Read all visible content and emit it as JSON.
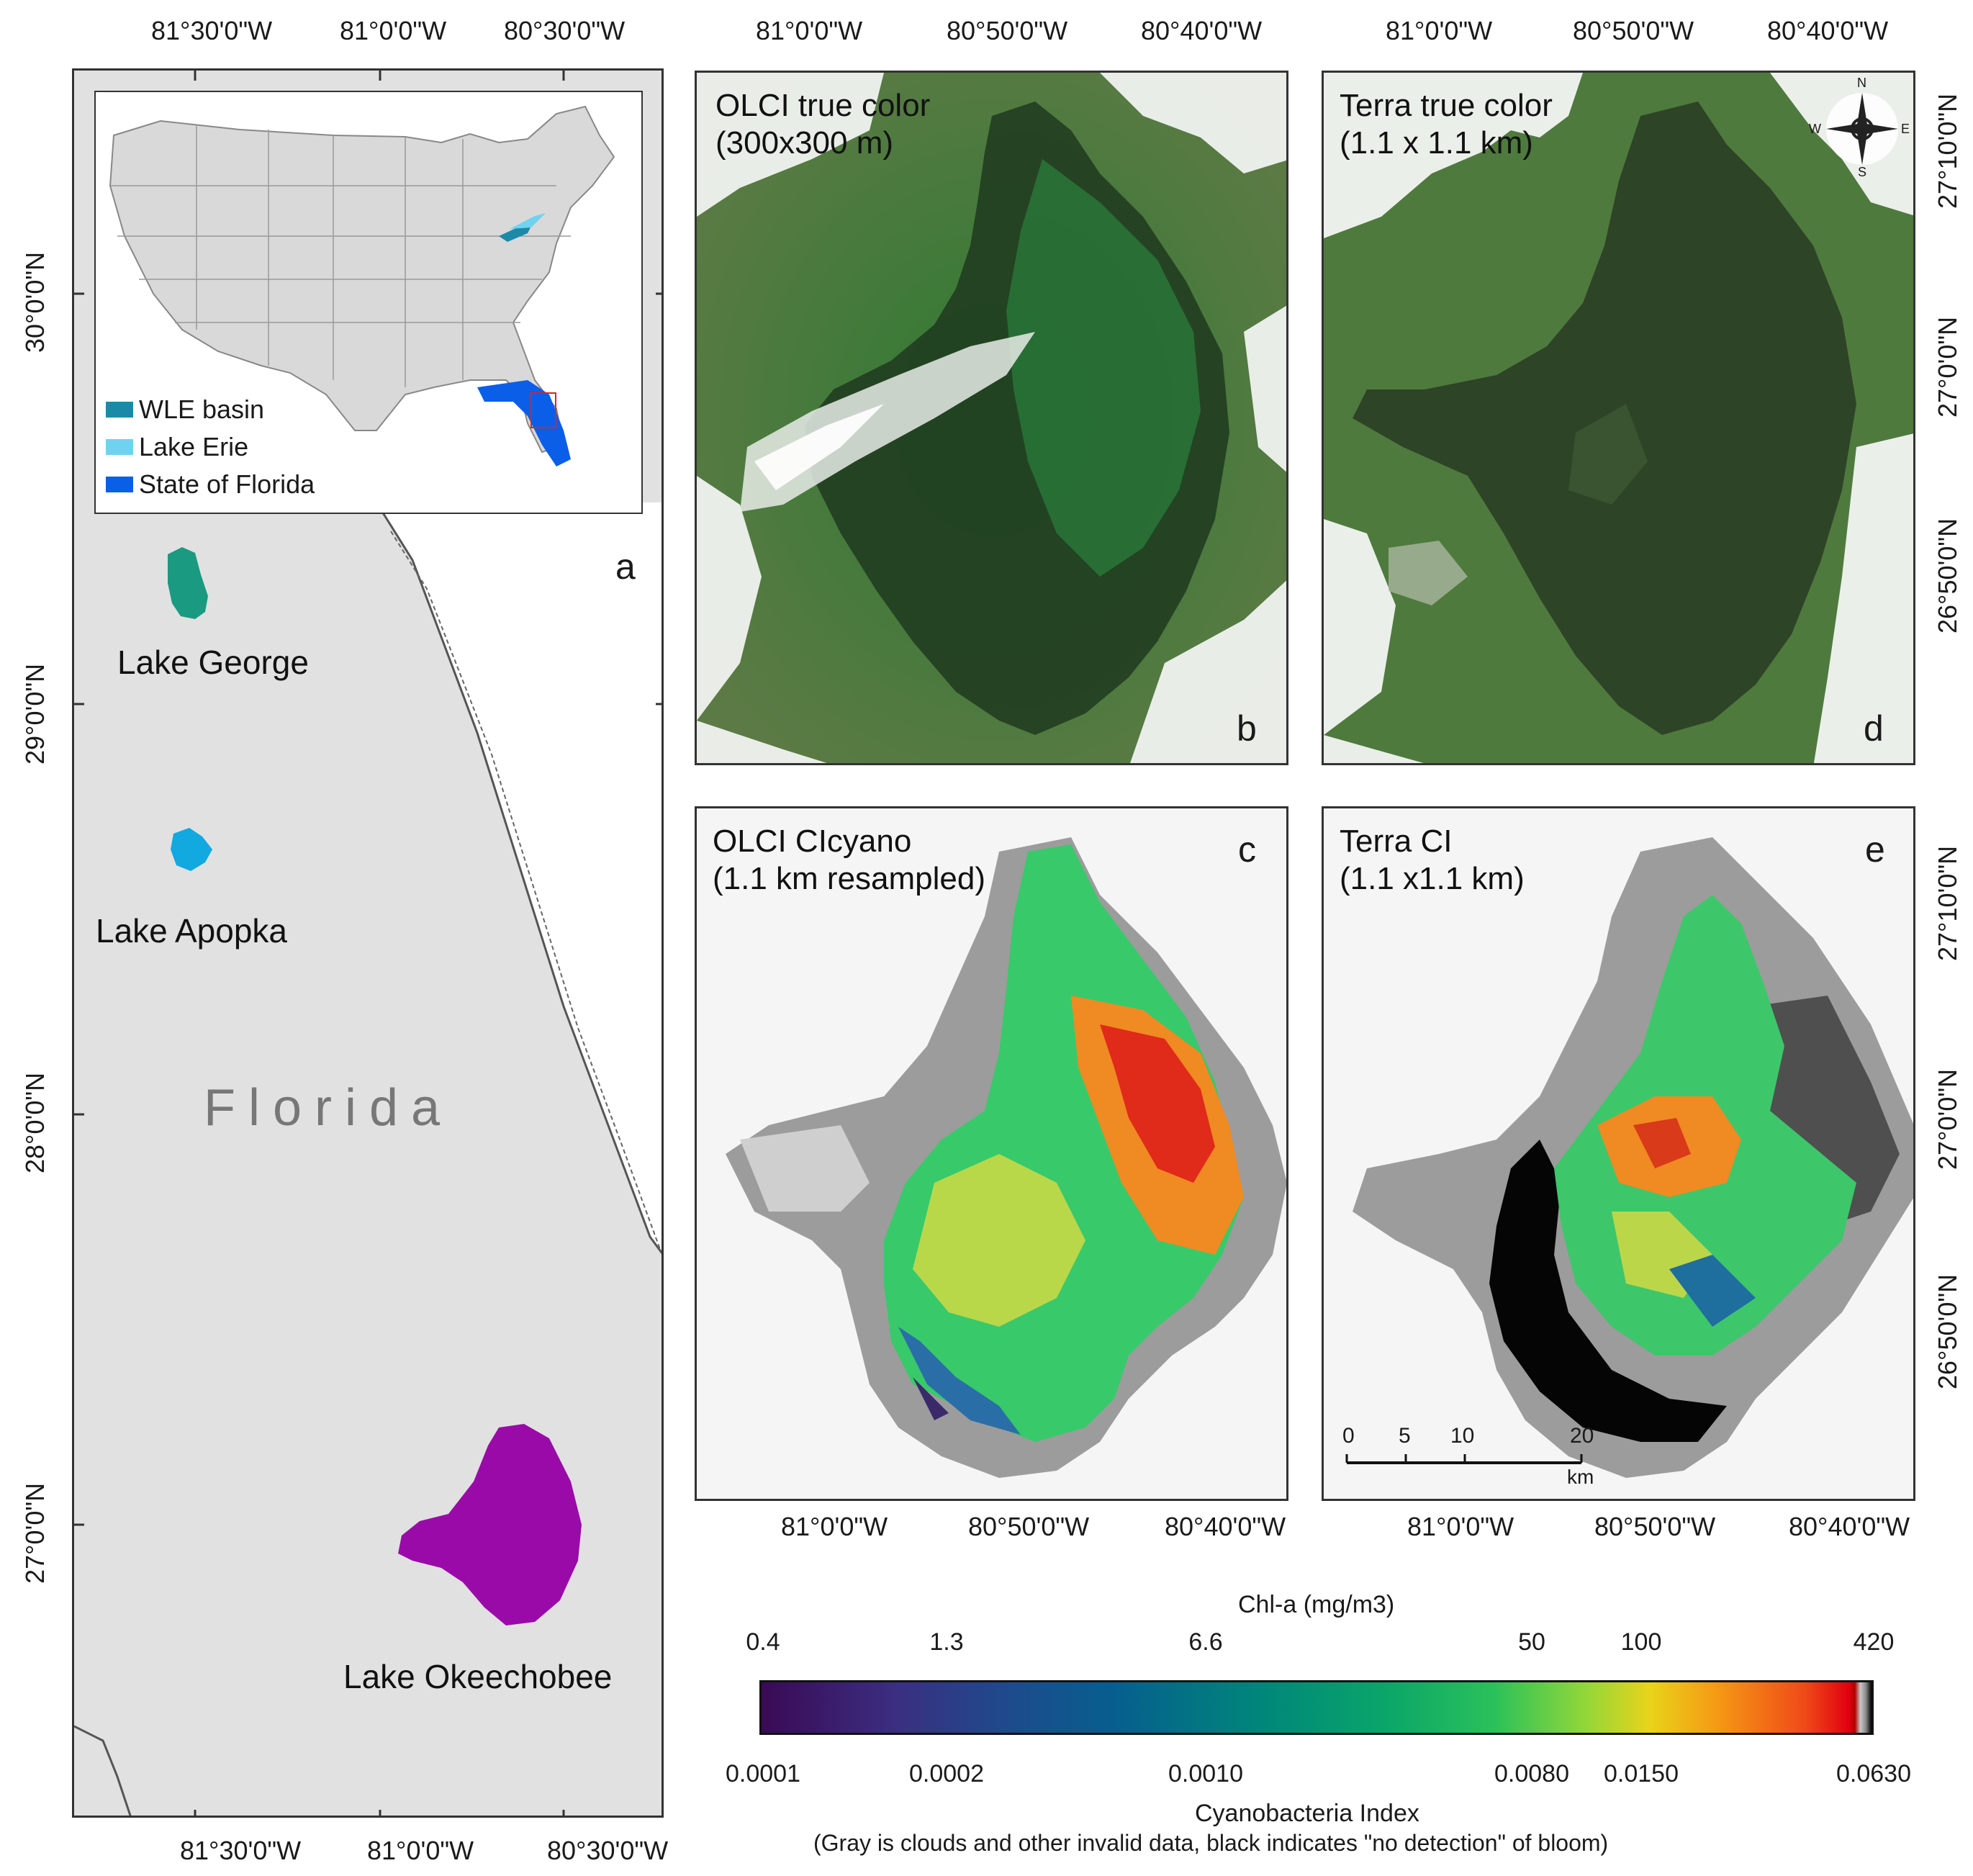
{
  "panel_a": {
    "top_ticks": [
      "81°30'0\"W",
      "81°0'0\"W",
      "80°30'0\"W"
    ],
    "bottom_ticks": [
      "81°30'0\"W",
      "81°0'0\"W",
      "80°30'0\"W"
    ],
    "left_ticks": [
      "30°0'0\"N",
      "29°0'0\"N",
      "28°0'0\"N",
      "27°0'0\"N"
    ],
    "letter": "a",
    "state_label": "Florida",
    "lakes": [
      "Lake George",
      "Lake Apopka",
      "Lake Okeechobee"
    ],
    "lake_colors": [
      "#1a9a80",
      "#12a8e0",
      "#9a0aa8"
    ],
    "legend": [
      {
        "label": "WLE basin",
        "color": "#1b8aa8"
      },
      {
        "label": "Lake Erie",
        "color": "#6fd3ef"
      },
      {
        "label": "State of Florida",
        "color": "#0b5ee8"
      }
    ]
  },
  "panels_right": {
    "top_ticks": [
      "81°0'0\"W",
      "80°50'0\"W",
      "80°40'0\"W"
    ],
    "bottom_ticks": [
      "81°0'0\"W",
      "80°50'0\"W",
      "80°40'0\"W"
    ],
    "right_ticks": [
      "27°10'0\"N",
      "27°0'0\"N",
      "26°50'0\"N"
    ],
    "b": {
      "letter": "b",
      "label1": "OLCI true color",
      "label2": "(300x300 m)"
    },
    "c": {
      "letter": "c",
      "label1": "OLCI CIcyano",
      "label2": "(1.1 km resampled)"
    },
    "d": {
      "letter": "d",
      "label1": "Terra true color",
      "label2": "(1.1 x 1.1 km)"
    },
    "e": {
      "letter": "e",
      "label1": "Terra CI",
      "label2": "(1.1 x1.1 km)"
    },
    "compass": {
      "n": "N",
      "s": "S",
      "e": "E",
      "w": "W"
    },
    "scale_bar": {
      "ticks": [
        "0",
        "5",
        "10",
        "20"
      ],
      "unit": "km"
    }
  },
  "colorbar": {
    "top_title": "Chl-a (mg/m3)",
    "top_ticks": [
      "0.4",
      "1.3",
      "6.6",
      "50",
      "100",
      "420"
    ],
    "bottom_ticks": [
      "0.0001",
      "0.0002",
      "0.0010",
      "0.0080",
      "0.0150",
      "0.0630"
    ],
    "bottom_title": "Cyanobacteria Index",
    "bottom_note": "(Gray is clouds and other invalid data, black indicates \"no detection\" of bloom)"
  }
}
